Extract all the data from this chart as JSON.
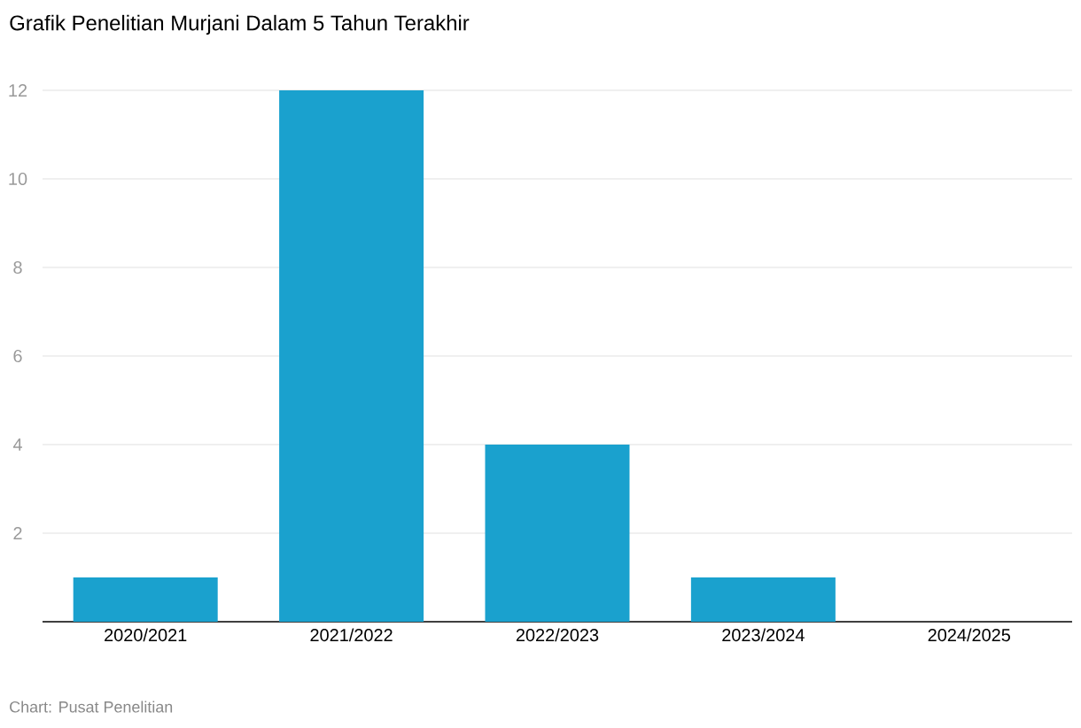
{
  "chart_data": {
    "type": "bar",
    "title": "Grafik Penelitian Murjani Dalam 5 Tahun Terakhir",
    "categories": [
      "2020/2021",
      "2021/2022",
      "2022/2023",
      "2023/2024",
      "2024/2025"
    ],
    "values": [
      1,
      12,
      4,
      1,
      0
    ],
    "color": "#1aa1ce",
    "ylim": [
      0,
      12
    ],
    "yticks": [
      2,
      4,
      6,
      8,
      10,
      12
    ],
    "grid": "y",
    "annotations": [
      "Chart: Pusat Penelitian"
    ]
  }
}
